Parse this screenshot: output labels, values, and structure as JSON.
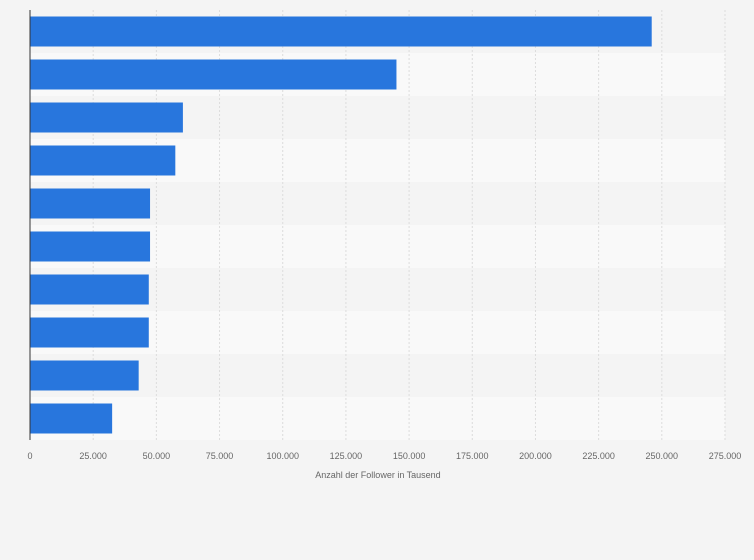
{
  "chart_data": {
    "type": "bar",
    "orientation": "horizontal",
    "categories": [
      "",
      "",
      "",
      "",
      "",
      "",
      "",
      "",
      "",
      ""
    ],
    "values": [
      246000,
      145000,
      60500,
      57500,
      47500,
      47500,
      47000,
      47000,
      43000,
      32500
    ],
    "title": "",
    "xlabel": "Anzahl der Follower in Tausend",
    "ylabel": "",
    "xlim": [
      0,
      275000
    ],
    "xticks": [
      0,
      25000,
      50000,
      75000,
      100000,
      125000,
      150000,
      175000,
      200000,
      225000,
      250000,
      275000
    ],
    "xtick_labels": [
      "0",
      "25.000",
      "50.000",
      "75.000",
      "100.000",
      "125.000",
      "150.000",
      "175.000",
      "200.000",
      "225.000",
      "250.000",
      "275.000"
    ],
    "grid": true,
    "legend": "none",
    "colors": {
      "bar": "#2876dd",
      "row_band_light": "#f9f9f9",
      "row_band_dark": "#f4f4f4",
      "grid": "#dcdcdc",
      "axis": "#333333"
    }
  }
}
